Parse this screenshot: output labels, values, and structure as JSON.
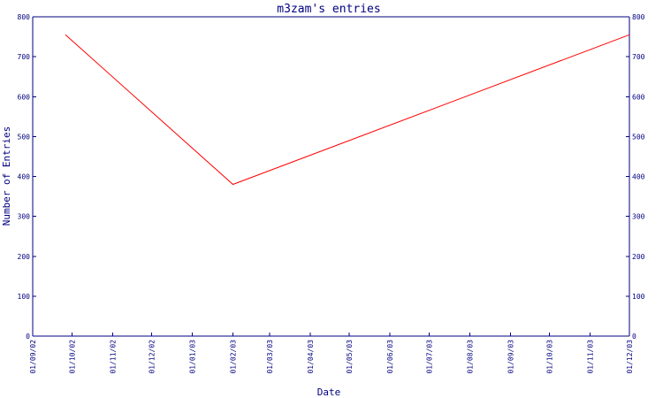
{
  "chart_data": {
    "type": "line",
    "title": "m3zam's entries",
    "xlabel": "Date",
    "ylabel": "Number of Entries",
    "ylim": [
      0,
      800
    ],
    "yticks": [
      0,
      100,
      200,
      300,
      400,
      500,
      600,
      700,
      800
    ],
    "x_tick_labels": [
      "01/09/02",
      "01/10/02",
      "01/11/02",
      "01/12/02",
      "01/01/03",
      "01/02/03",
      "01/03/03",
      "01/04/03",
      "01/05/03",
      "01/06/03",
      "01/07/03",
      "01/08/03",
      "01/09/03",
      "01/10/03",
      "01/11/03",
      "01/12/03"
    ],
    "y_axis_right": true,
    "grid": false,
    "series": [
      {
        "color": "#ff0000",
        "points": [
          {
            "x": "2002-09-26",
            "y": 755
          },
          {
            "x": "2003-02-01",
            "y": 380
          },
          {
            "x": "2003-12-01",
            "y": 755
          }
        ]
      }
    ]
  }
}
